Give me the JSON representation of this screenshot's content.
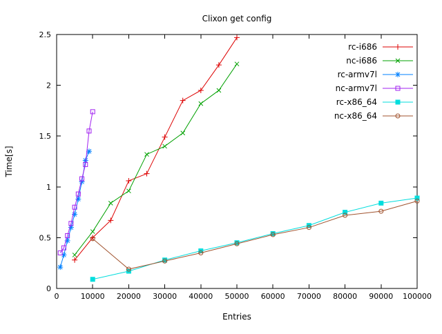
{
  "title": "Clixon get config",
  "chart_data": {
    "type": "line",
    "title": "Clixon get config",
    "xlabel": "Entries",
    "ylabel": "Time[s]",
    "xlim": [
      0,
      100000
    ],
    "ylim": [
      0,
      2.5
    ],
    "xticks": [
      0,
      10000,
      20000,
      30000,
      40000,
      50000,
      60000,
      70000,
      80000,
      90000,
      100000
    ],
    "yticks": [
      0,
      0.5,
      1,
      1.5,
      2,
      2.5
    ],
    "grid": false,
    "legend_position": "top-right-inside",
    "series": [
      {
        "name": "rc-i686",
        "color": "#dd0000",
        "marker": "plus",
        "points": [
          [
            5000,
            0.28
          ],
          [
            10000,
            0.5
          ],
          [
            15000,
            0.67
          ],
          [
            20000,
            1.06
          ],
          [
            25000,
            1.13
          ],
          [
            30000,
            1.49
          ],
          [
            35000,
            1.85
          ],
          [
            40000,
            1.95
          ],
          [
            45000,
            2.2
          ],
          [
            50000,
            2.47
          ]
        ]
      },
      {
        "name": "nc-i686",
        "color": "#00a000",
        "marker": "cross",
        "points": [
          [
            5000,
            0.33
          ],
          [
            10000,
            0.56
          ],
          [
            15000,
            0.84
          ],
          [
            20000,
            0.96
          ],
          [
            25000,
            1.32
          ],
          [
            30000,
            1.4
          ],
          [
            35000,
            1.53
          ],
          [
            40000,
            1.82
          ],
          [
            45000,
            1.95
          ],
          [
            50000,
            2.21
          ]
        ]
      },
      {
        "name": "rc-armv7l",
        "color": "#0080ff",
        "marker": "asterisk",
        "points": [
          [
            1000,
            0.21
          ],
          [
            2000,
            0.33
          ],
          [
            3000,
            0.47
          ],
          [
            4000,
            0.6
          ],
          [
            5000,
            0.73
          ],
          [
            6000,
            0.88
          ],
          [
            7000,
            1.05
          ],
          [
            8000,
            1.26
          ],
          [
            9000,
            1.35
          ]
        ]
      },
      {
        "name": "nc-armv7l",
        "color": "#a020f0",
        "marker": "square-open",
        "points": [
          [
            1000,
            0.35
          ],
          [
            2000,
            0.4
          ],
          [
            3000,
            0.52
          ],
          [
            4000,
            0.64
          ],
          [
            5000,
            0.8
          ],
          [
            6000,
            0.93
          ],
          [
            7000,
            1.08
          ],
          [
            8000,
            1.22
          ],
          [
            9000,
            1.55
          ],
          [
            10000,
            1.74
          ]
        ]
      },
      {
        "name": "rc-x86_64",
        "color": "#00dddd",
        "marker": "square-filled",
        "points": [
          [
            10000,
            0.09
          ],
          [
            20000,
            0.17
          ],
          [
            30000,
            0.28
          ],
          [
            40000,
            0.37
          ],
          [
            50000,
            0.45
          ],
          [
            60000,
            0.54
          ],
          [
            70000,
            0.62
          ],
          [
            80000,
            0.75
          ],
          [
            90000,
            0.84
          ],
          [
            100000,
            0.89
          ]
        ]
      },
      {
        "name": "nc-x86_64",
        "color": "#a0522d",
        "marker": "circle-open",
        "points": [
          [
            10000,
            0.49
          ],
          [
            20000,
            0.19
          ],
          [
            30000,
            0.27
          ],
          [
            40000,
            0.35
          ],
          [
            50000,
            0.44
          ],
          [
            60000,
            0.53
          ],
          [
            70000,
            0.6
          ],
          [
            80000,
            0.72
          ],
          [
            90000,
            0.76
          ],
          [
            100000,
            0.86
          ]
        ]
      }
    ]
  }
}
